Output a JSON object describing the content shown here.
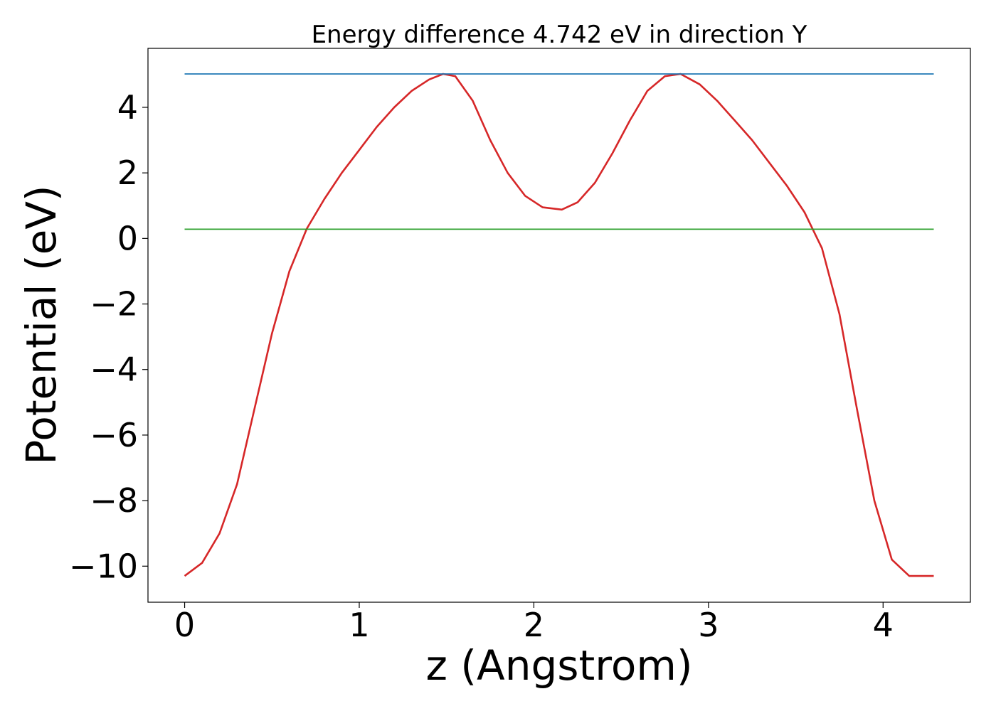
{
  "chart_data": {
    "type": "line",
    "title": "Energy difference 4.742 eV in direction Y",
    "xlabel": "z (Angstrom)",
    "ylabel": "Potential (eV)",
    "xlim": [
      -0.21,
      4.5
    ],
    "ylim": [
      -11.1,
      5.8
    ],
    "grid": false,
    "legend": "none",
    "xticks": [
      0,
      1,
      2,
      3,
      4
    ],
    "xtick_labels": [
      "0",
      "1",
      "2",
      "3",
      "4"
    ],
    "yticks": [
      4,
      2,
      0,
      -2,
      -4,
      -6,
      -8,
      -10
    ],
    "ytick_labels": [
      "4",
      "2",
      "0",
      "−2",
      "−4",
      "−6",
      "−8",
      "−10"
    ],
    "series": [
      {
        "color": "#d62728",
        "x": [
          0,
          0.1,
          0.2,
          0.3,
          0.4,
          0.5,
          0.6,
          0.7,
          0.8,
          0.9,
          1.0,
          1.1,
          1.2,
          1.3,
          1.4,
          1.48,
          1.55,
          1.65,
          1.75,
          1.85,
          1.95,
          2.05,
          2.16,
          2.25,
          2.35,
          2.45,
          2.55,
          2.65,
          2.75,
          2.84,
          2.95,
          3.05,
          3.15,
          3.25,
          3.35,
          3.45,
          3.55,
          3.65,
          3.75,
          3.85,
          3.95,
          4.05,
          4.15,
          4.29
        ],
        "y": [
          -10.3,
          -9.9,
          -9.0,
          -7.5,
          -5.2,
          -2.9,
          -1.0,
          0.3,
          1.2,
          2.0,
          2.7,
          3.4,
          4.0,
          4.5,
          4.85,
          5.02,
          4.95,
          4.2,
          3.0,
          2.0,
          1.3,
          0.95,
          0.88,
          1.1,
          1.7,
          2.6,
          3.6,
          4.5,
          4.95,
          5.02,
          4.7,
          4.2,
          3.6,
          3.0,
          2.3,
          1.6,
          0.8,
          -0.3,
          -2.3,
          -5.2,
          -8.0,
          -9.8,
          -10.3,
          -10.3
        ]
      },
      {
        "color": "#1f77b4",
        "x": [
          0,
          4.29
        ],
        "y": [
          5.02,
          5.02
        ]
      },
      {
        "color": "#2ca02c",
        "x": [
          0,
          4.29
        ],
        "y": [
          0.28,
          0.28
        ]
      }
    ]
  }
}
